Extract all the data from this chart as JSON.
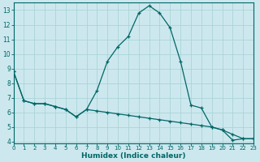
{
  "xlabel": "Humidex (Indice chaleur)",
  "bg_color": "#cce8ee",
  "line_color": "#006666",
  "grid_color": "#aad4d8",
  "line1_x": [
    0,
    1,
    2,
    3,
    4,
    5,
    6,
    7,
    8,
    9,
    10,
    11,
    12,
    13,
    14,
    15,
    16,
    17,
    18,
    19,
    20,
    21,
    22,
    23
  ],
  "line1_y": [
    8.8,
    6.8,
    6.6,
    6.6,
    6.4,
    6.2,
    5.7,
    6.2,
    7.5,
    9.5,
    10.5,
    11.2,
    12.8,
    13.3,
    12.8,
    11.8,
    9.5,
    6.5,
    6.3,
    5.0,
    4.8,
    4.1,
    4.2,
    4.2
  ],
  "line2_x": [
    0,
    1,
    2,
    3,
    4,
    5,
    6,
    7,
    8,
    9,
    10,
    11,
    12,
    13,
    14,
    15,
    16,
    17,
    18,
    19,
    20,
    21,
    22,
    23
  ],
  "line2_y": [
    8.8,
    6.8,
    6.6,
    6.6,
    6.4,
    6.2,
    5.7,
    6.2,
    6.1,
    6.0,
    5.9,
    5.8,
    5.7,
    5.6,
    5.5,
    5.4,
    5.3,
    5.2,
    5.1,
    5.0,
    4.8,
    4.5,
    4.2,
    4.2
  ],
  "xlim": [
    0,
    23
  ],
  "ylim": [
    3.9,
    13.5
  ],
  "yticks": [
    4,
    5,
    6,
    7,
    8,
    9,
    10,
    11,
    12,
    13
  ],
  "xticks": [
    0,
    1,
    2,
    3,
    4,
    5,
    6,
    7,
    8,
    9,
    10,
    11,
    12,
    13,
    14,
    15,
    16,
    17,
    18,
    19,
    20,
    21,
    22,
    23
  ]
}
